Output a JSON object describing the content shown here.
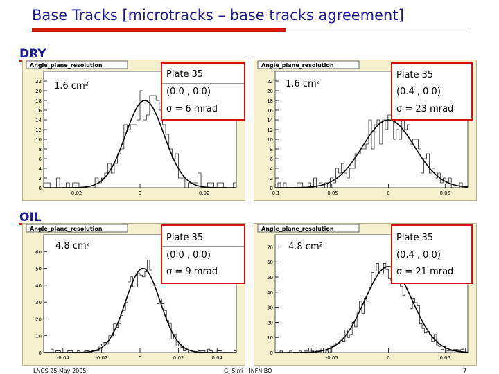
{
  "title": "Base Tracks  [microtracks – base tracks agreement]",
  "sections": {
    "dry": "DRY",
    "oil": "OIL"
  },
  "footer": {
    "left": "LNGS 25 May 2005",
    "center": "G. Sirri – INFN BO",
    "page": "7"
  },
  "colors": {
    "title": "#1a1a9a",
    "accent": "#d01515",
    "panel_bg": "#f4efcc",
    "histogram": "#000000"
  },
  "chart_data": [
    {
      "type": "histogram",
      "hist_title": "Angle_plane_resolution",
      "area_label": "1.6 cm²",
      "info": {
        "plate": "Plate 35",
        "angle": "(0.0 , 0.0)",
        "sigma": "σ = 6 mrad"
      },
      "xlim": [
        -0.03,
        0.03
      ],
      "ylim": [
        0,
        24
      ],
      "x_ticks": [
        "-0.02",
        "0",
        "0.02"
      ],
      "y_ticks": [
        "0",
        "2",
        "4",
        "6",
        "8",
        "10",
        "12",
        "14",
        "16",
        "18",
        "20",
        "22"
      ],
      "fit": {
        "mean": 0.0015,
        "sigma": 0.006,
        "peak": 18
      },
      "bins": 60
    },
    {
      "type": "histogram",
      "hist_title": "Angle_plane_resolution",
      "area_label": "1.6 cm²",
      "info": {
        "plate": "Plate 35",
        "angle": "(0.4 , 0.0)",
        "sigma": "σ = 23 mrad"
      },
      "xlim": [
        -0.1,
        0.07
      ],
      "ylim": [
        0,
        24
      ],
      "x_ticks": [
        "-0.1",
        "-0.05",
        "0",
        "0.05"
      ],
      "y_ticks": [
        "0",
        "2",
        "4",
        "6",
        "8",
        "10",
        "12",
        "14",
        "16",
        "18",
        "20",
        "22"
      ],
      "fit": {
        "mean": 0.0,
        "sigma": 0.023,
        "peak": 14
      },
      "bins": 70
    },
    {
      "type": "histogram",
      "hist_title": "Angle_plane_resolution",
      "area_label": "4.8 cm²",
      "info": {
        "plate": "Plate 35",
        "angle": "(0.0 , 0.0)",
        "sigma": "σ = 9 mrad"
      },
      "xlim": [
        -0.05,
        0.05
      ],
      "ylim": [
        0,
        70
      ],
      "x_ticks": [
        "-0.04",
        "-0.02",
        "0",
        "0.02",
        "0.04"
      ],
      "y_ticks": [
        "0",
        "10",
        "20",
        "30",
        "40",
        "50",
        "60"
      ],
      "fit": {
        "mean": 0.0015,
        "sigma": 0.009,
        "peak": 50
      },
      "bins": 80
    },
    {
      "type": "histogram",
      "hist_title": "Angle_plane_resolution",
      "area_label": "4.8 cm²",
      "info": {
        "plate": "Plate 35",
        "angle": "(0.4 , 0.0)",
        "sigma": "σ = 21 mrad"
      },
      "xlim": [
        -0.1,
        0.07
      ],
      "ylim": [
        0,
        78
      ],
      "x_ticks": [
        "-0.05",
        "0",
        "0.05"
      ],
      "y_ticks": [
        "0",
        "10",
        "20",
        "30",
        "40",
        "50",
        "60",
        "70"
      ],
      "fit": {
        "mean": 0.0,
        "sigma": 0.021,
        "peak": 57
      },
      "bins": 80
    }
  ]
}
